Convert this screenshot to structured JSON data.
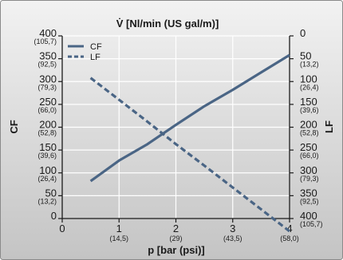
{
  "chart_data": {
    "type": "line",
    "title": "V̇ [Nl/min (US gal/m)]",
    "xlabel": "p [bar (psi)]",
    "ylabel_left": "CF",
    "ylabel_right": "LF",
    "xlim": [
      0,
      4
    ],
    "ylim_left": [
      0,
      400
    ],
    "ylim_right": [
      0,
      400
    ],
    "right_axis_inverted": true,
    "x_ticks": [
      {
        "v": 0,
        "main": "0",
        "sub": ""
      },
      {
        "v": 1,
        "main": "1",
        "sub": "(14,5)"
      },
      {
        "v": 2,
        "main": "2",
        "sub": "(29)"
      },
      {
        "v": 3,
        "main": "3",
        "sub": "(43,5)"
      },
      {
        "v": 4,
        "main": "4",
        "sub": "(58,0)"
      }
    ],
    "left_ticks": [
      {
        "v": 400,
        "main": "400",
        "sub": "(105,7)"
      },
      {
        "v": 350,
        "main": "350",
        "sub": "(92,5)"
      },
      {
        "v": 300,
        "main": "300",
        "sub": "(79,3)"
      },
      {
        "v": 250,
        "main": "250",
        "sub": "(66,0)"
      },
      {
        "v": 200,
        "main": "200",
        "sub": "(52,8)"
      },
      {
        "v": 150,
        "main": "150",
        "sub": "(39,6)"
      },
      {
        "v": 100,
        "main": "100",
        "sub": "(26,4)"
      },
      {
        "v": 50,
        "main": "50",
        "sub": "(13,2)"
      },
      {
        "v": 0,
        "main": "0",
        "sub": ""
      }
    ],
    "right_ticks": [
      {
        "v": 0,
        "main": "0",
        "sub": ""
      },
      {
        "v": 50,
        "main": "50",
        "sub": "(13,2)"
      },
      {
        "v": 100,
        "main": "100",
        "sub": "(26,4)"
      },
      {
        "v": 150,
        "main": "150",
        "sub": "(39,6)"
      },
      {
        "v": 200,
        "main": "200",
        "sub": "(52,8)"
      },
      {
        "v": 250,
        "main": "250",
        "sub": "(66,0)"
      },
      {
        "v": 300,
        "main": "300",
        "sub": "(79,3)"
      },
      {
        "v": 350,
        "main": "350",
        "sub": "(92,5)"
      },
      {
        "v": 400,
        "main": "400",
        "sub": "(105,7)"
      }
    ],
    "grid": true,
    "legend_placement": "top-left",
    "series": [
      {
        "name": "CF",
        "axis": "left",
        "style": "solid",
        "color": "#4a6585",
        "x": [
          0.5,
          1.0,
          1.5,
          2.0,
          2.5,
          3.0,
          3.5,
          4.0
        ],
        "y": [
          82,
          127,
          163,
          205,
          246,
          282,
          320,
          358
        ]
      },
      {
        "name": "LF",
        "axis": "right",
        "style": "dashed",
        "color": "#4a6585",
        "x": [
          0.5,
          1.0,
          1.5,
          2.0,
          2.5,
          3.0,
          3.5,
          4.0
        ],
        "y": [
          92,
          140,
          188,
          237,
          284,
          332,
          380,
          428
        ]
      }
    ]
  },
  "colors": {
    "background_top": "#f2f2f2",
    "background_bottom": "#c4c4c4",
    "frame": "#8a8a8a",
    "grid": "#ffffff",
    "line": "#4a6585"
  }
}
